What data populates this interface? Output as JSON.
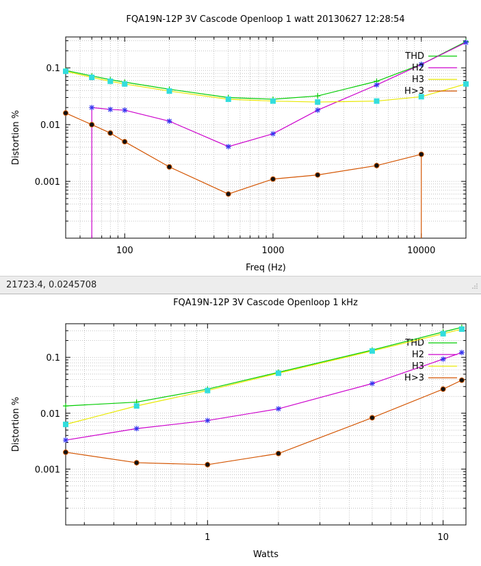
{
  "status": {
    "coords": "21723.4,  0.0245708"
  },
  "chart_data": [
    {
      "type": "line",
      "title": "FQA19N-12P 3V Cascode Openloop 1 watt 20130627 12:28:54",
      "xlabel": "Freq (Hz)",
      "ylabel": "Distortion %",
      "xscale": "log",
      "yscale": "log",
      "xlim": [
        40,
        20000
      ],
      "ylim": [
        0.0001,
        0.35
      ],
      "grid": true,
      "legend": "top-right",
      "xticks": [
        {
          "v": 100,
          "label": "100"
        },
        {
          "v": 1000,
          "label": "1000"
        },
        {
          "v": 10000,
          "label": "10000"
        }
      ],
      "yticks": [
        {
          "v": 0.1,
          "label": "0.1"
        },
        {
          "v": 0.01,
          "label": "0.01"
        },
        {
          "v": 0.001,
          "label": "0.001"
        }
      ],
      "series": [
        {
          "name": "THD",
          "color": "#00cc00",
          "marker": "plus",
          "x": [
            40,
            60,
            80,
            100,
            200,
            500,
            1000,
            2000,
            5000,
            10000,
            20000
          ],
          "y": [
            0.09,
            0.072,
            0.062,
            0.056,
            0.042,
            0.03,
            0.028,
            0.032,
            0.058,
            0.115,
            0.29
          ]
        },
        {
          "name": "H2",
          "color": "#cc00cc",
          "marker": "star",
          "drop_first": true,
          "x": [
            60,
            80,
            100,
            200,
            500,
            1000,
            2000,
            5000,
            10000,
            20000
          ],
          "y": [
            0.02,
            0.0185,
            0.018,
            0.0115,
            0.0041,
            0.0069,
            0.018,
            0.05,
            0.115,
            0.28
          ]
        },
        {
          "name": "H3",
          "color": "#e8e800",
          "marker": "square",
          "x": [
            40,
            60,
            80,
            100,
            200,
            500,
            1000,
            2000,
            5000,
            10000,
            20000
          ],
          "y": [
            0.087,
            0.068,
            0.058,
            0.052,
            0.039,
            0.028,
            0.026,
            0.025,
            0.026,
            0.031,
            0.052
          ]
        },
        {
          "name": "H>3",
          "color": "#d35400",
          "marker": "dot",
          "drop_last": true,
          "x": [
            40,
            60,
            80,
            100,
            200,
            500,
            1000,
            2000,
            5000,
            10000
          ],
          "y": [
            0.016,
            0.01,
            0.0071,
            0.005,
            0.0018,
            0.0006,
            0.0011,
            0.0013,
            0.0019,
            0.003
          ]
        }
      ]
    },
    {
      "type": "line",
      "title": "FQA19N-12P 3V Cascode Openloop 1 kHz",
      "xlabel": "Watts",
      "ylabel": "Distortion %",
      "xscale": "log",
      "yscale": "log",
      "xlim": [
        0.25,
        12.5
      ],
      "ylim": [
        0.0001,
        0.4
      ],
      "grid": true,
      "legend": "top-right",
      "xticks": [
        {
          "v": 1,
          "label": "1"
        },
        {
          "v": 10,
          "label": "10"
        }
      ],
      "yticks": [
        {
          "v": 0.1,
          "label": "0.1"
        },
        {
          "v": 0.01,
          "label": "0.01"
        },
        {
          "v": 0.001,
          "label": "0.001"
        }
      ],
      "series": [
        {
          "name": "THD",
          "color": "#00cc00",
          "marker": "plus",
          "x": [
            0.25,
            0.5,
            1,
            2,
            5,
            10,
            12
          ],
          "y": [
            0.0135,
            0.0158,
            0.027,
            0.054,
            0.135,
            0.285,
            0.345
          ]
        },
        {
          "name": "H2",
          "color": "#cc00cc",
          "marker": "star",
          "x": [
            0.25,
            0.5,
            1,
            2,
            5,
            10,
            12
          ],
          "y": [
            0.0033,
            0.0053,
            0.0074,
            0.012,
            0.034,
            0.093,
            0.122
          ]
        },
        {
          "name": "H3",
          "color": "#e8e800",
          "marker": "square",
          "x": [
            0.25,
            0.5,
            1,
            2,
            5,
            10,
            12
          ],
          "y": [
            0.0063,
            0.0135,
            0.0255,
            0.052,
            0.13,
            0.265,
            0.32
          ]
        },
        {
          "name": "H>3",
          "color": "#d35400",
          "marker": "dot",
          "x": [
            0.25,
            0.5,
            1,
            2,
            5,
            10,
            12
          ],
          "y": [
            0.002,
            0.0013,
            0.0012,
            0.0019,
            0.0083,
            0.027,
            0.039
          ]
        }
      ]
    }
  ]
}
